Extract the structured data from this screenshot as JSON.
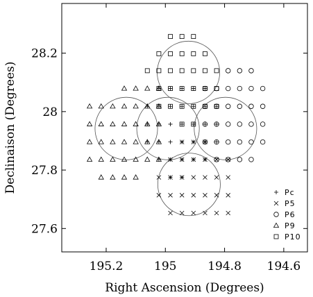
{
  "chart_data": {
    "type": "scatter",
    "title": "",
    "xlabel": "Right Ascension (Degrees)",
    "ylabel": "Declinaison (Degrees)",
    "xlim": [
      195.35,
      194.52
    ],
    "ylim": [
      27.52,
      28.37
    ],
    "x_reversed": true,
    "xticks": [
      195.2,
      195,
      194.8,
      194.6
    ],
    "xtick_labels": [
      "195.2",
      "195",
      "194.8",
      "194.6"
    ],
    "yticks": [
      27.6,
      27.8,
      28.0,
      28.2
    ],
    "ytick_labels": [
      "27.6",
      "27.8",
      "28",
      "28.2"
    ],
    "grid": false,
    "legend_position": "bottom-right",
    "circles": [
      {
        "field": "P10",
        "center": [
          194.922,
          28.134
        ],
        "radius": 0.107
      },
      {
        "field": "P9",
        "center": [
          195.132,
          27.942
        ],
        "radius": 0.107
      },
      {
        "field": "Pc",
        "center": [
          194.991,
          27.942
        ],
        "radius": 0.107
      },
      {
        "field": "P6",
        "center": [
          194.797,
          27.942
        ],
        "radius": 0.107
      },
      {
        "field": "P5",
        "center": [
          194.92,
          27.751
        ],
        "radius": 0.107
      }
    ],
    "series": [
      {
        "name": "Pc",
        "marker": "plus",
        "points": [
          [
            195.022,
            28.079
          ],
          [
            195.022,
            28.018
          ],
          [
            195.022,
            27.957
          ],
          [
            195.022,
            27.896
          ],
          [
            195.022,
            27.836
          ],
          [
            194.983,
            28.079
          ],
          [
            194.983,
            28.018
          ],
          [
            194.983,
            27.957
          ],
          [
            194.983,
            27.896
          ],
          [
            194.983,
            27.836
          ],
          [
            194.944,
            28.079
          ],
          [
            194.944,
            28.018
          ],
          [
            194.944,
            27.957
          ],
          [
            194.944,
            27.896
          ],
          [
            194.944,
            27.836
          ],
          [
            194.905,
            28.079
          ],
          [
            194.905,
            28.018
          ],
          [
            194.905,
            27.957
          ],
          [
            194.905,
            27.896
          ],
          [
            194.905,
            27.836
          ],
          [
            194.866,
            28.079
          ],
          [
            194.866,
            28.018
          ],
          [
            194.866,
            27.957
          ],
          [
            194.866,
            27.896
          ],
          [
            194.866,
            27.836
          ],
          [
            194.827,
            28.018
          ],
          [
            194.827,
            27.957
          ],
          [
            194.827,
            27.896
          ],
          [
            195.061,
            28.018
          ],
          [
            195.061,
            27.957
          ],
          [
            195.061,
            27.896
          ],
          [
            194.983,
            27.775
          ],
          [
            194.944,
            27.775
          ]
        ]
      },
      {
        "name": "P5",
        "marker": "cross",
        "points": [
          [
            195.022,
            27.775
          ],
          [
            194.983,
            27.775
          ],
          [
            194.944,
            27.775
          ],
          [
            194.905,
            27.775
          ],
          [
            194.866,
            27.775
          ],
          [
            194.827,
            27.775
          ],
          [
            194.788,
            27.775
          ],
          [
            195.022,
            27.714
          ],
          [
            194.983,
            27.714
          ],
          [
            194.944,
            27.714
          ],
          [
            194.905,
            27.714
          ],
          [
            194.866,
            27.714
          ],
          [
            194.827,
            27.714
          ],
          [
            194.788,
            27.714
          ],
          [
            194.983,
            27.653
          ],
          [
            194.944,
            27.653
          ],
          [
            194.905,
            27.653
          ],
          [
            194.866,
            27.653
          ],
          [
            194.827,
            27.653
          ],
          [
            194.788,
            27.653
          ],
          [
            194.983,
            27.836
          ],
          [
            194.944,
            27.836
          ],
          [
            194.905,
            27.836
          ],
          [
            194.866,
            27.836
          ],
          [
            194.827,
            27.836
          ],
          [
            194.788,
            27.836
          ],
          [
            194.944,
            27.896
          ],
          [
            194.905,
            27.896
          ],
          [
            194.866,
            27.896
          ]
        ]
      },
      {
        "name": "P6",
        "marker": "circle",
        "points": [
          [
            194.788,
            28.14
          ],
          [
            194.749,
            28.14
          ],
          [
            194.71,
            28.14
          ],
          [
            194.866,
            28.079
          ],
          [
            194.827,
            28.079
          ],
          [
            194.788,
            28.079
          ],
          [
            194.749,
            28.079
          ],
          [
            194.71,
            28.079
          ],
          [
            194.671,
            28.079
          ],
          [
            194.866,
            28.018
          ],
          [
            194.827,
            28.018
          ],
          [
            194.788,
            28.018
          ],
          [
            194.749,
            28.018
          ],
          [
            194.71,
            28.018
          ],
          [
            194.671,
            28.018
          ],
          [
            194.866,
            27.957
          ],
          [
            194.827,
            27.957
          ],
          [
            194.788,
            27.957
          ],
          [
            194.749,
            27.957
          ],
          [
            194.71,
            27.957
          ],
          [
            194.671,
            27.957
          ],
          [
            194.866,
            27.896
          ],
          [
            194.827,
            27.896
          ],
          [
            194.788,
            27.896
          ],
          [
            194.749,
            27.896
          ],
          [
            194.71,
            27.896
          ],
          [
            194.671,
            27.896
          ],
          [
            194.827,
            27.836
          ],
          [
            194.788,
            27.836
          ],
          [
            194.749,
            27.836
          ],
          [
            194.71,
            27.836
          ]
        ]
      },
      {
        "name": "P9",
        "marker": "triangle",
        "points": [
          [
            195.139,
            28.079
          ],
          [
            195.1,
            28.079
          ],
          [
            195.061,
            28.079
          ],
          [
            195.022,
            28.079
          ],
          [
            195.256,
            28.018
          ],
          [
            195.217,
            28.018
          ],
          [
            195.178,
            28.018
          ],
          [
            195.139,
            28.018
          ],
          [
            195.1,
            28.018
          ],
          [
            195.061,
            28.018
          ],
          [
            195.022,
            28.018
          ],
          [
            195.256,
            27.957
          ],
          [
            195.217,
            27.957
          ],
          [
            195.178,
            27.957
          ],
          [
            195.139,
            27.957
          ],
          [
            195.1,
            27.957
          ],
          [
            195.061,
            27.957
          ],
          [
            195.022,
            27.957
          ],
          [
            195.256,
            27.896
          ],
          [
            195.217,
            27.896
          ],
          [
            195.178,
            27.896
          ],
          [
            195.139,
            27.896
          ],
          [
            195.1,
            27.896
          ],
          [
            195.061,
            27.896
          ],
          [
            195.022,
            27.896
          ],
          [
            195.256,
            27.836
          ],
          [
            195.217,
            27.836
          ],
          [
            195.178,
            27.836
          ],
          [
            195.139,
            27.836
          ],
          [
            195.1,
            27.836
          ],
          [
            195.061,
            27.836
          ],
          [
            195.022,
            27.836
          ],
          [
            195.217,
            27.775
          ],
          [
            195.178,
            27.775
          ],
          [
            195.139,
            27.775
          ],
          [
            195.1,
            27.775
          ]
        ]
      },
      {
        "name": "P10",
        "marker": "square",
        "points": [
          [
            194.983,
            28.257
          ],
          [
            194.944,
            28.257
          ],
          [
            194.905,
            28.257
          ],
          [
            195.022,
            28.198
          ],
          [
            194.983,
            28.198
          ],
          [
            194.944,
            28.198
          ],
          [
            194.905,
            28.198
          ],
          [
            194.866,
            28.198
          ],
          [
            195.061,
            28.14
          ],
          [
            195.022,
            28.14
          ],
          [
            194.983,
            28.14
          ],
          [
            194.944,
            28.14
          ],
          [
            194.905,
            28.14
          ],
          [
            194.866,
            28.14
          ],
          [
            194.827,
            28.14
          ],
          [
            195.022,
            28.079
          ],
          [
            194.983,
            28.079
          ],
          [
            194.944,
            28.079
          ],
          [
            194.905,
            28.079
          ],
          [
            194.866,
            28.079
          ],
          [
            194.827,
            28.079
          ],
          [
            195.022,
            28.018
          ],
          [
            194.983,
            28.018
          ],
          [
            194.944,
            28.018
          ],
          [
            194.905,
            28.018
          ],
          [
            194.866,
            28.018
          ],
          [
            194.827,
            28.018
          ],
          [
            194.944,
            27.957
          ],
          [
            194.905,
            27.957
          ]
        ]
      }
    ],
    "legend": [
      {
        "label": "Pc",
        "marker": "plus"
      },
      {
        "label": "P5",
        "marker": "cross"
      },
      {
        "label": "P6",
        "marker": "circle"
      },
      {
        "label": "P9",
        "marker": "triangle"
      },
      {
        "label": "P10",
        "marker": "square"
      }
    ]
  }
}
